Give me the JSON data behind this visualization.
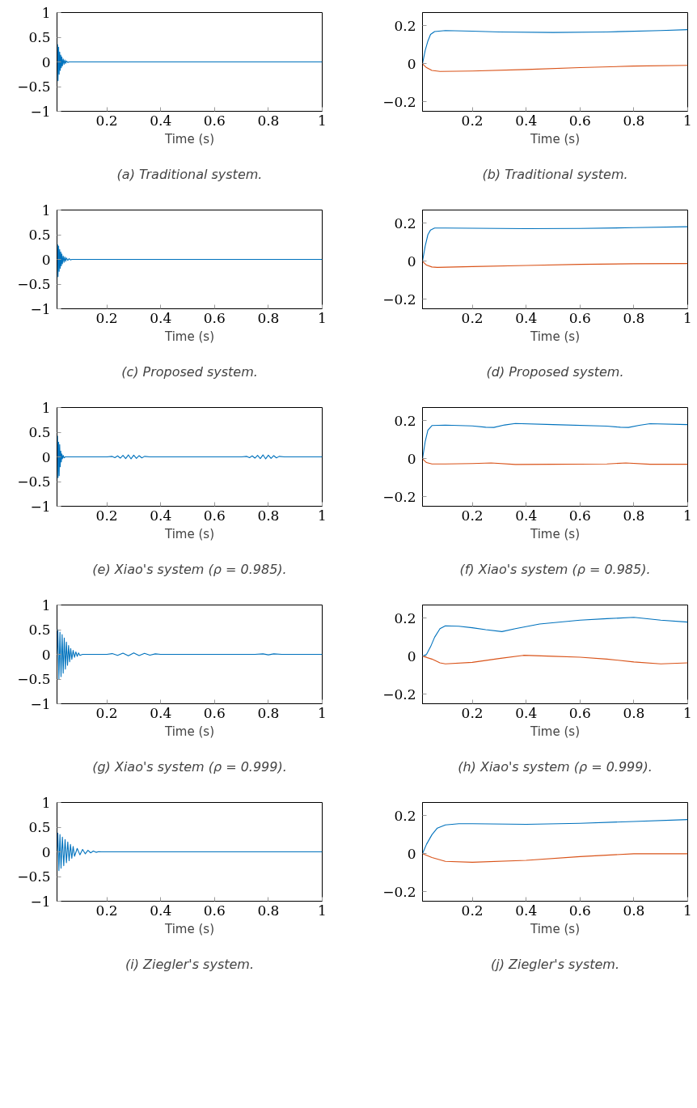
{
  "chart_data": [
    {
      "type": "line",
      "title": "(a) Traditional system.",
      "xlabel": "Time (s)",
      "xlim": [
        0.015,
        1
      ],
      "ylim": [
        -1,
        1
      ],
      "xticks": [
        0.2,
        0.4,
        0.6,
        0.8,
        1
      ],
      "yticks": [
        {
          "value": -1,
          "label": "−1"
        },
        {
          "value": -0.5,
          "label": "−0.5"
        },
        0,
        0.5,
        1
      ],
      "series": [
        {
          "color": "#0072bd",
          "x": [
            0.015,
            0.017,
            0.019,
            0.021,
            0.023,
            0.025,
            0.027,
            0.029,
            0.031,
            0.033,
            0.035,
            0.038,
            0.041,
            0.044,
            0.047,
            0.05,
            0.055,
            0.06,
            0.1,
            0.3,
            0.5,
            0.7,
            1
          ],
          "values": [
            0,
            0.35,
            -0.38,
            0.3,
            -0.25,
            0.2,
            -0.17,
            0.14,
            -0.12,
            0.1,
            -0.08,
            0.06,
            -0.05,
            0.04,
            -0.03,
            0.02,
            -0.01,
            0,
            0,
            0,
            0,
            0,
            0
          ]
        }
      ]
    },
    {
      "type": "line",
      "title": "(b) Traditional system.",
      "xlabel": "Time (s)",
      "xlim": [
        0.015,
        1
      ],
      "ylim": [
        -0.25,
        0.27
      ],
      "xticks": [
        0.2,
        0.4,
        0.6,
        0.8,
        1
      ],
      "yticks": [
        {
          "value": -0.2,
          "label": "−0.2"
        },
        0,
        0.2
      ],
      "series": [
        {
          "color": "#0072bd",
          "x": [
            0.015,
            0.025,
            0.035,
            0.045,
            0.06,
            0.1,
            0.2,
            0.3,
            0.5,
            0.7,
            0.9,
            1
          ],
          "values": [
            0,
            0.07,
            0.12,
            0.155,
            0.17,
            0.175,
            0.172,
            0.168,
            0.165,
            0.168,
            0.175,
            0.18
          ]
        },
        {
          "color": "#d95319",
          "x": [
            0.015,
            0.03,
            0.05,
            0.08,
            0.2,
            0.4,
            0.6,
            0.8,
            1
          ],
          "values": [
            0,
            -0.02,
            -0.035,
            -0.04,
            -0.038,
            -0.03,
            -0.02,
            -0.012,
            -0.008
          ]
        }
      ]
    },
    {
      "type": "line",
      "title": "(c) Proposed system.",
      "xlabel": "Time (s)",
      "xlim": [
        0.015,
        1
      ],
      "ylim": [
        -1,
        1
      ],
      "xticks": [
        0.2,
        0.4,
        0.6,
        0.8,
        1
      ],
      "yticks": [
        {
          "value": -1,
          "label": "−1"
        },
        {
          "value": -0.5,
          "label": "−0.5"
        },
        0,
        0.5,
        1
      ],
      "series": [
        {
          "color": "#0072bd",
          "x": [
            0.015,
            0.017,
            0.019,
            0.021,
            0.023,
            0.025,
            0.027,
            0.029,
            0.031,
            0.033,
            0.035,
            0.038,
            0.041,
            0.044,
            0.047,
            0.05,
            0.055,
            0.06,
            0.065,
            0.07,
            0.1,
            0.3,
            0.5,
            0.7,
            1
          ],
          "values": [
            0,
            0.3,
            -0.35,
            0.27,
            -0.24,
            0.2,
            -0.18,
            0.15,
            -0.13,
            0.11,
            -0.09,
            0.07,
            -0.06,
            0.05,
            -0.04,
            0.03,
            -0.02,
            0.015,
            -0.01,
            0,
            0,
            0,
            0,
            0,
            0
          ]
        }
      ]
    },
    {
      "type": "line",
      "title": "(d) Proposed system.",
      "xlabel": "Time (s)",
      "xlim": [
        0.015,
        1
      ],
      "ylim": [
        -0.25,
        0.27
      ],
      "xticks": [
        0.2,
        0.4,
        0.6,
        0.8,
        1
      ],
      "yticks": [
        {
          "value": -0.2,
          "label": "−0.2"
        },
        0,
        0.2
      ],
      "series": [
        {
          "color": "#0072bd",
          "x": [
            0.015,
            0.025,
            0.035,
            0.045,
            0.06,
            0.1,
            0.2,
            0.4,
            0.6,
            0.8,
            1
          ],
          "values": [
            0,
            0.08,
            0.14,
            0.165,
            0.175,
            0.175,
            0.174,
            0.172,
            0.173,
            0.177,
            0.182
          ]
        },
        {
          "color": "#d95319",
          "x": [
            0.015,
            0.03,
            0.05,
            0.07,
            0.2,
            0.4,
            0.6,
            0.8,
            1
          ],
          "values": [
            0,
            -0.02,
            -0.03,
            -0.032,
            -0.028,
            -0.022,
            -0.016,
            -0.013,
            -0.012
          ]
        }
      ]
    },
    {
      "type": "line",
      "title": "(e) Xiao's system (ρ = 0.985).",
      "xlabel": "Time (s)",
      "xlim": [
        0.015,
        1
      ],
      "ylim": [
        -1,
        1
      ],
      "xticks": [
        0.2,
        0.4,
        0.6,
        0.8,
        1
      ],
      "yticks": [
        {
          "value": -1,
          "label": "−1"
        },
        {
          "value": -0.5,
          "label": "−0.5"
        },
        0,
        0.5,
        1
      ],
      "series": [
        {
          "color": "#0072bd",
          "x": [
            0.015,
            0.017,
            0.019,
            0.021,
            0.023,
            0.025,
            0.027,
            0.029,
            0.031,
            0.033,
            0.035,
            0.038,
            0.041,
            0.045,
            0.2,
            0.22,
            0.23,
            0.24,
            0.25,
            0.26,
            0.27,
            0.28,
            0.29,
            0.3,
            0.31,
            0.32,
            0.33,
            0.34,
            0.36,
            0.7,
            0.72,
            0.73,
            0.74,
            0.75,
            0.76,
            0.77,
            0.78,
            0.79,
            0.8,
            0.81,
            0.82,
            0.83,
            0.84,
            0.86,
            1
          ],
          "values": [
            0,
            0.42,
            -0.42,
            0.3,
            -0.38,
            0.25,
            -0.2,
            0.12,
            -0.1,
            0.06,
            -0.04,
            0.03,
            -0.02,
            0,
            0,
            0.01,
            -0.015,
            0.02,
            -0.025,
            0.03,
            -0.035,
            0.04,
            -0.04,
            0.035,
            -0.03,
            0.025,
            -0.02,
            0.01,
            0,
            0,
            0.01,
            -0.015,
            0.02,
            -0.025,
            0.03,
            -0.035,
            0.04,
            -0.04,
            0.035,
            -0.03,
            0.025,
            -0.02,
            0.01,
            0,
            0
          ]
        }
      ]
    },
    {
      "type": "line",
      "title": "(f) Xiao's system (ρ = 0.985).",
      "xlabel": "Time (s)",
      "xlim": [
        0.015,
        1
      ],
      "ylim": [
        -0.25,
        0.27
      ],
      "xticks": [
        0.2,
        0.4,
        0.6,
        0.8,
        1
      ],
      "yticks": [
        {
          "value": -0.2,
          "label": "−0.2"
        },
        0,
        0.2
      ],
      "series": [
        {
          "color": "#0072bd",
          "x": [
            0.015,
            0.025,
            0.035,
            0.05,
            0.1,
            0.2,
            0.25,
            0.28,
            0.32,
            0.36,
            0.5,
            0.7,
            0.75,
            0.78,
            0.82,
            0.86,
            1
          ],
          "values": [
            0,
            0.09,
            0.15,
            0.175,
            0.177,
            0.173,
            0.166,
            0.165,
            0.178,
            0.186,
            0.18,
            0.172,
            0.166,
            0.165,
            0.176,
            0.185,
            0.18
          ]
        },
        {
          "color": "#d95319",
          "x": [
            0.015,
            0.03,
            0.05,
            0.1,
            0.2,
            0.27,
            0.36,
            0.5,
            0.7,
            0.77,
            0.86,
            1
          ],
          "values": [
            0,
            -0.02,
            -0.027,
            -0.027,
            -0.025,
            -0.022,
            -0.03,
            -0.029,
            -0.027,
            -0.022,
            -0.029,
            -0.029
          ]
        }
      ]
    },
    {
      "type": "line",
      "title": "(g) Xiao's system (ρ = 0.999).",
      "xlabel": "Time (s)",
      "xlim": [
        0.015,
        1
      ],
      "ylim": [
        -1,
        1
      ],
      "xticks": [
        0.2,
        0.4,
        0.6,
        0.8,
        1
      ],
      "yticks": [
        {
          "value": -1,
          "label": "−1"
        },
        {
          "value": -0.5,
          "label": "−0.5"
        },
        0,
        0.5,
        1
      ],
      "series": [
        {
          "color": "#0072bd",
          "x": [
            0.015,
            0.018,
            0.022,
            0.026,
            0.03,
            0.034,
            0.038,
            0.042,
            0.046,
            0.05,
            0.054,
            0.058,
            0.062,
            0.066,
            0.07,
            0.075,
            0.08,
            0.085,
            0.09,
            0.095,
            0.1,
            0.11,
            0.2,
            0.22,
            0.24,
            0.26,
            0.28,
            0.3,
            0.32,
            0.34,
            0.36,
            0.38,
            0.4,
            0.75,
            0.78,
            0.8,
            0.82,
            0.85,
            1
          ],
          "values": [
            0,
            0.5,
            -0.5,
            0.45,
            -0.45,
            0.4,
            -0.38,
            0.33,
            -0.3,
            0.25,
            -0.22,
            0.18,
            -0.15,
            0.12,
            -0.1,
            0.08,
            -0.06,
            0.05,
            -0.04,
            0.03,
            -0.02,
            0,
            0,
            0.015,
            -0.02,
            0.025,
            -0.03,
            0.03,
            -0.025,
            0.02,
            -0.015,
            0.01,
            0,
            0,
            0.01,
            -0.01,
            0.01,
            0,
            0
          ]
        }
      ]
    },
    {
      "type": "line",
      "title": "(h) Xiao's system (ρ = 0.999).",
      "xlabel": "Time (s)",
      "xlim": [
        0.015,
        1
      ],
      "ylim": [
        -0.25,
        0.27
      ],
      "xticks": [
        0.2,
        0.4,
        0.6,
        0.8,
        1
      ],
      "yticks": [
        {
          "value": -0.2,
          "label": "−0.2"
        },
        0,
        0.2
      ],
      "series": [
        {
          "color": "#0072bd",
          "x": [
            0.015,
            0.03,
            0.045,
            0.06,
            0.08,
            0.1,
            0.15,
            0.2,
            0.25,
            0.31,
            0.36,
            0.45,
            0.6,
            0.7,
            0.8,
            0.9,
            1
          ],
          "values": [
            0,
            0.01,
            0.05,
            0.1,
            0.145,
            0.16,
            0.158,
            0.15,
            0.14,
            0.13,
            0.145,
            0.17,
            0.19,
            0.198,
            0.205,
            0.19,
            0.18
          ]
        },
        {
          "color": "#d95319",
          "x": [
            0.015,
            0.05,
            0.08,
            0.1,
            0.2,
            0.3,
            0.39,
            0.5,
            0.6,
            0.7,
            0.8,
            0.9,
            1
          ],
          "values": [
            0,
            -0.015,
            -0.035,
            -0.04,
            -0.032,
            -0.012,
            0.005,
            0,
            -0.005,
            -0.015,
            -0.03,
            -0.04,
            -0.035
          ]
        }
      ]
    },
    {
      "type": "line",
      "title": "(i) Ziegler's system.",
      "xlabel": "Time (s)",
      "xlim": [
        0.015,
        1
      ],
      "ylim": [
        -1,
        1
      ],
      "xticks": [
        0.2,
        0.4,
        0.6,
        0.8,
        1
      ],
      "yticks": [
        {
          "value": -1,
          "label": "−1"
        },
        {
          "value": -0.5,
          "label": "−0.5"
        },
        0,
        0.5,
        1
      ],
      "series": [
        {
          "color": "#0072bd",
          "x": [
            0.015,
            0.018,
            0.022,
            0.026,
            0.03,
            0.035,
            0.04,
            0.045,
            0.05,
            0.055,
            0.06,
            0.065,
            0.07,
            0.075,
            0.08,
            0.09,
            0.1,
            0.11,
            0.12,
            0.13,
            0.14,
            0.15,
            0.16,
            0.17,
            0.18,
            0.3,
            0.5,
            0.7,
            1
          ],
          "values": [
            0,
            0.38,
            -0.38,
            0.35,
            -0.33,
            0.3,
            -0.28,
            0.25,
            -0.22,
            0.2,
            -0.18,
            0.15,
            -0.13,
            0.11,
            -0.09,
            0.07,
            -0.06,
            0.05,
            -0.04,
            0.03,
            -0.02,
            0.015,
            -0.01,
            0.005,
            0,
            0,
            0,
            0,
            0
          ]
        }
      ]
    },
    {
      "type": "line",
      "title": "(j) Ziegler's system.",
      "xlabel": "Time (s)",
      "xlim": [
        0.015,
        1
      ],
      "ylim": [
        -0.25,
        0.27
      ],
      "xticks": [
        0.2,
        0.4,
        0.6,
        0.8,
        1
      ],
      "yticks": [
        {
          "value": -0.2,
          "label": "−0.2"
        },
        0,
        0.2
      ],
      "series": [
        {
          "color": "#0072bd",
          "x": [
            0.015,
            0.03,
            0.05,
            0.07,
            0.1,
            0.15,
            0.2,
            0.4,
            0.6,
            0.8,
            1
          ],
          "values": [
            0,
            0.05,
            0.1,
            0.135,
            0.152,
            0.158,
            0.158,
            0.155,
            0.16,
            0.17,
            0.18
          ]
        },
        {
          "color": "#d95319",
          "x": [
            0.015,
            0.05,
            0.1,
            0.2,
            0.4,
            0.6,
            0.8,
            1
          ],
          "values": [
            0,
            -0.02,
            -0.04,
            -0.045,
            -0.035,
            -0.015,
            0,
            0
          ]
        }
      ]
    }
  ]
}
